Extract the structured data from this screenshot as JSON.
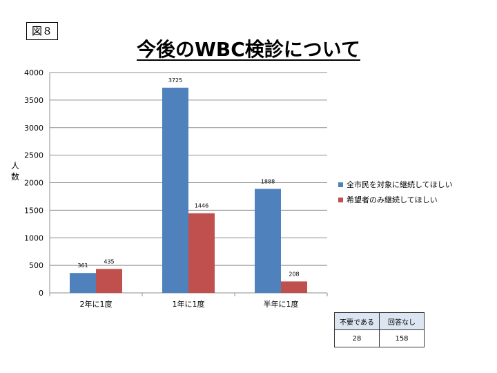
{
  "figure_label": "図８",
  "title": "今後のWBC検診について",
  "chart_data": {
    "type": "bar",
    "categories": [
      "2年に1度",
      "1年に1度",
      "半年に1度"
    ],
    "series": [
      {
        "name": "全市民を対象に継続してほしい",
        "color": "#4f81bd",
        "values": [
          361,
          3725,
          1888
        ]
      },
      {
        "name": "希望者のみ継続してほしい",
        "color": "#c0504d",
        "values": [
          435,
          1446,
          208
        ]
      }
    ],
    "ylabel": "人数",
    "xlabel": "",
    "ylim": [
      0,
      4000
    ],
    "yticks": [
      0,
      500,
      1000,
      1500,
      2000,
      2500,
      3000,
      3500,
      4000
    ],
    "grid": true,
    "legend_position": "right"
  },
  "answers_table": {
    "headers": [
      "不要である",
      "回答なし"
    ],
    "values": [
      "28",
      "158"
    ]
  }
}
